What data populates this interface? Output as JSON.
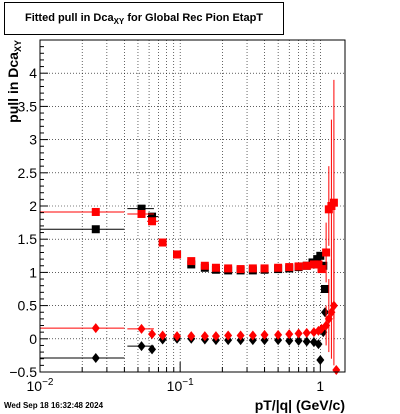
{
  "title": {
    "main": "Fitted pull in Dca",
    "sub": "XY",
    "rest": " for Global Rec Pion EtapT"
  },
  "timestamp": "Wed Sep 18 16:32:48 2024",
  "colors": {
    "series_black": "#000000",
    "series_red": "#ff0000",
    "grid": "#000000",
    "axis": "#000000"
  },
  "chart_data": {
    "type": "scatter",
    "x_scale": "log",
    "xlim": [
      0.01,
      1.5
    ],
    "ylim": [
      -0.5,
      4.5
    ],
    "xlabel": "pT/|q| (GeV/c)",
    "ylabel": {
      "main": "pull in Dca",
      "sub": "XY"
    },
    "grid": true,
    "x_ticks": [
      {
        "value": 0.01,
        "label": "10",
        "exp": "−2"
      },
      {
        "value": 0.1,
        "label": "10",
        "exp": "−1"
      },
      {
        "value": 1,
        "label": "1",
        "exp": ""
      }
    ],
    "y_ticks": [
      {
        "value": -0.5,
        "label": "−0.5"
      },
      {
        "value": 0,
        "label": "0"
      },
      {
        "value": 0.5,
        "label": "0.5"
      },
      {
        "value": 1,
        "label": "1"
      },
      {
        "value": 1.5,
        "label": "1.5"
      },
      {
        "value": 2,
        "label": "2"
      },
      {
        "value": 2.5,
        "label": "2.5"
      },
      {
        "value": 3,
        "label": "3"
      },
      {
        "value": 3.5,
        "label": "3.5"
      },
      {
        "value": 4,
        "label": "4"
      }
    ],
    "series": [
      {
        "marker": "square",
        "color": "#000000",
        "kind": "mean",
        "points": [
          {
            "x": 0.025,
            "y": 1.65,
            "xlo": 0.01,
            "xhi": 0.04
          },
          {
            "x": 0.053,
            "y": 1.96,
            "xlo": 0.042,
            "xhi": 0.065
          },
          {
            "x": 0.063,
            "y": 1.84,
            "xlo": 0.058,
            "xhi": 0.07
          },
          {
            "x": 0.095,
            "y": 1.27
          },
          {
            "x": 0.12,
            "y": 1.12
          },
          {
            "x": 0.15,
            "y": 1.07
          },
          {
            "x": 0.18,
            "y": 1.04
          },
          {
            "x": 0.22,
            "y": 1.03
          },
          {
            "x": 0.27,
            "y": 1.03
          },
          {
            "x": 0.33,
            "y": 1.03
          },
          {
            "x": 0.4,
            "y": 1.04
          },
          {
            "x": 0.5,
            "y": 1.05
          },
          {
            "x": 0.6,
            "y": 1.06
          },
          {
            "x": 0.7,
            "y": 1.08
          },
          {
            "x": 0.8,
            "y": 1.1
          },
          {
            "x": 0.88,
            "y": 1.15
          },
          {
            "x": 0.95,
            "y": 1.2
          },
          {
            "x": 1.0,
            "y": 1.25
          },
          {
            "x": 1.05,
            "y": 1.1
          },
          {
            "x": 1.08,
            "y": 0.75
          }
        ]
      },
      {
        "marker": "square",
        "color": "#ff0000",
        "kind": "mean",
        "points": [
          {
            "x": 0.025,
            "y": 1.91,
            "xlo": 0.01,
            "xhi": 0.04
          },
          {
            "x": 0.053,
            "y": 1.88,
            "xlo": 0.042,
            "xhi": 0.065
          },
          {
            "x": 0.063,
            "y": 1.77,
            "xlo": 0.058,
            "xhi": 0.07
          },
          {
            "x": 0.075,
            "y": 1.45
          },
          {
            "x": 0.095,
            "y": 1.27
          },
          {
            "x": 0.12,
            "y": 1.17
          },
          {
            "x": 0.15,
            "y": 1.1
          },
          {
            "x": 0.18,
            "y": 1.07
          },
          {
            "x": 0.22,
            "y": 1.06
          },
          {
            "x": 0.27,
            "y": 1.05
          },
          {
            "x": 0.33,
            "y": 1.06
          },
          {
            "x": 0.4,
            "y": 1.06
          },
          {
            "x": 0.5,
            "y": 1.07
          },
          {
            "x": 0.6,
            "y": 1.08
          },
          {
            "x": 0.7,
            "y": 1.09
          },
          {
            "x": 0.8,
            "y": 1.1
          },
          {
            "x": 0.9,
            "y": 1.12
          },
          {
            "x": 0.97,
            "y": 1.12
          },
          {
            "x": 1.02,
            "y": 1.05
          },
          {
            "x": 1.1,
            "y": 1.3,
            "ylo": 0.85,
            "yhi": 1.75
          },
          {
            "x": 1.15,
            "y": 1.95,
            "ylo": 1.4,
            "yhi": 2.6
          },
          {
            "x": 1.2,
            "y": 2.0,
            "ylo": 0.5,
            "yhi": 3.3
          },
          {
            "x": 1.25,
            "y": 2.05,
            "ylo": 0.3,
            "yhi": 3.9
          }
        ]
      },
      {
        "marker": "diamond",
        "color": "#000000",
        "kind": "sigma",
        "points": [
          {
            "x": 0.025,
            "y": -0.29,
            "xlo": 0.01,
            "xhi": 0.04
          },
          {
            "x": 0.053,
            "y": -0.11,
            "xlo": 0.042,
            "xhi": 0.065
          },
          {
            "x": 0.063,
            "y": -0.16
          },
          {
            "x": 0.075,
            "y": -0.01
          },
          {
            "x": 0.095,
            "y": 0.0
          },
          {
            "x": 0.12,
            "y": 0.0
          },
          {
            "x": 0.15,
            "y": -0.01
          },
          {
            "x": 0.18,
            "y": -0.02
          },
          {
            "x": 0.22,
            "y": -0.02
          },
          {
            "x": 0.27,
            "y": -0.02
          },
          {
            "x": 0.33,
            "y": -0.02
          },
          {
            "x": 0.4,
            "y": -0.02
          },
          {
            "x": 0.5,
            "y": -0.02
          },
          {
            "x": 0.6,
            "y": -0.03
          },
          {
            "x": 0.7,
            "y": -0.03
          },
          {
            "x": 0.8,
            "y": -0.04
          },
          {
            "x": 0.9,
            "y": -0.05
          },
          {
            "x": 0.97,
            "y": -0.08
          },
          {
            "x": 1.0,
            "y": -0.32
          },
          {
            "x": 1.05,
            "y": 0.1
          },
          {
            "x": 1.08,
            "y": 0.4
          }
        ]
      },
      {
        "marker": "diamond",
        "color": "#ff0000",
        "kind": "sigma",
        "points": [
          {
            "x": 0.025,
            "y": 0.16,
            "xlo": 0.01,
            "xhi": 0.04
          },
          {
            "x": 0.053,
            "y": 0.15,
            "xlo": 0.042,
            "xhi": 0.065
          },
          {
            "x": 0.063,
            "y": 0.07
          },
          {
            "x": 0.075,
            "y": 0.05
          },
          {
            "x": 0.095,
            "y": 0.04
          },
          {
            "x": 0.12,
            "y": 0.04
          },
          {
            "x": 0.15,
            "y": 0.04
          },
          {
            "x": 0.18,
            "y": 0.04
          },
          {
            "x": 0.22,
            "y": 0.05
          },
          {
            "x": 0.27,
            "y": 0.05
          },
          {
            "x": 0.33,
            "y": 0.05
          },
          {
            "x": 0.4,
            "y": 0.06
          },
          {
            "x": 0.5,
            "y": 0.06
          },
          {
            "x": 0.6,
            "y": 0.07
          },
          {
            "x": 0.7,
            "y": 0.08
          },
          {
            "x": 0.8,
            "y": 0.09
          },
          {
            "x": 0.9,
            "y": 0.1
          },
          {
            "x": 0.97,
            "y": 0.12
          },
          {
            "x": 1.02,
            "y": 0.15
          },
          {
            "x": 1.1,
            "y": 0.2,
            "ylo": -0.1,
            "yhi": 0.5
          },
          {
            "x": 1.15,
            "y": 0.3,
            "ylo": -0.2,
            "yhi": 0.9
          },
          {
            "x": 1.2,
            "y": 0.4,
            "ylo": -0.3,
            "yhi": 1.2
          },
          {
            "x": 1.25,
            "y": 0.5,
            "ylo": -0.4,
            "yhi": 1.5
          },
          {
            "x": 1.3,
            "y": -0.47
          }
        ]
      }
    ]
  }
}
